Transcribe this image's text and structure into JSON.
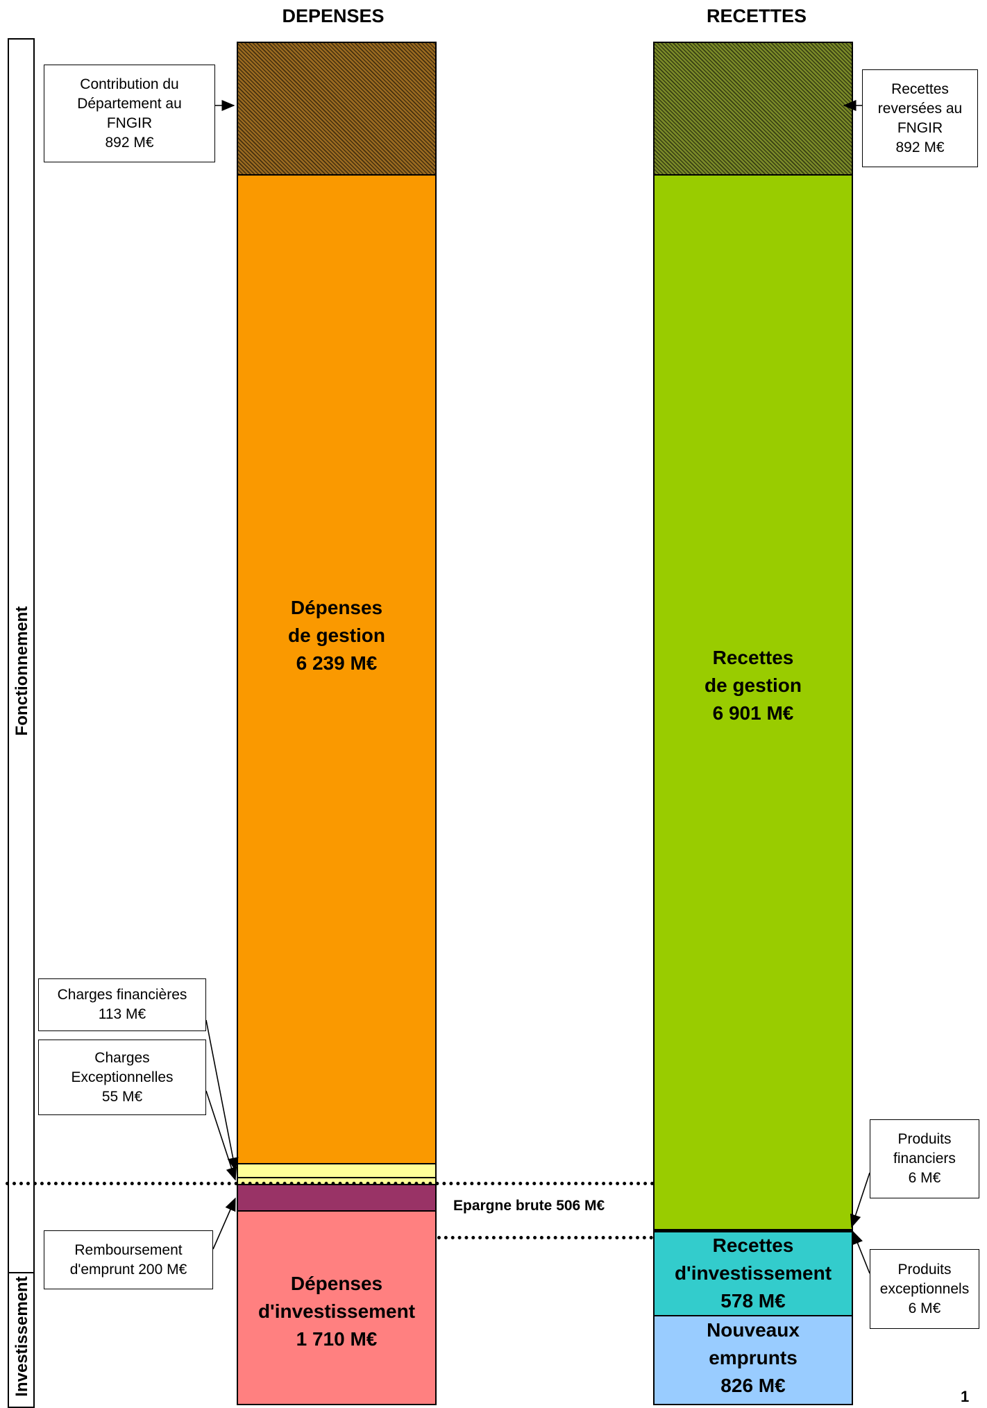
{
  "headings": {
    "depenses": "DEPENSES",
    "recettes": "RECETTES"
  },
  "sections": {
    "fonctionnement": "Fonctionnement",
    "investissement": "Investissement"
  },
  "depenses": {
    "fngir": {
      "color": "#9a6a20",
      "pattern": "hatched"
    },
    "gestion": {
      "label": "Dépenses\nde gestion\n6 239 M€",
      "color": "#fa9900"
    },
    "charges_financieres": {
      "color": "#ffff99"
    },
    "charges_exceptionnelles": {
      "color": "#ffff99"
    },
    "remboursement": {
      "color": "#993366"
    },
    "investissement": {
      "label": "Dépenses\nd'investissement\n1 710 M€",
      "color": "#ff8080"
    }
  },
  "recettes": {
    "fngir": {
      "color": "#7a8a28",
      "pattern": "hatched"
    },
    "gestion": {
      "label": "Recettes\nde gestion\n6 901 M€",
      "color": "#99cc00"
    },
    "investissement": {
      "label": "Recettes\nd'investissement\n578 M€",
      "color": "#33cccc"
    },
    "emprunts": {
      "label": "Nouveaux\nemprunts\n826 M€",
      "color": "#99ccff"
    }
  },
  "callouts": {
    "contribution_fngir": "Contribution du\nDépartement au\nFNGIR\n892 M€",
    "recettes_fngir": "Recettes\nreversées au\nFNGIR\n892 M€",
    "charges_financieres": "Charges financières\n113 M€",
    "charges_exceptionnelles": "Charges\nExceptionnelles\n55 M€",
    "remboursement_emprunt": "Remboursement\nd'emprunt 200 M€",
    "produits_financiers": "Produits\nfinanciers\n6 M€",
    "produits_exceptionnels": "Produits\nexceptionnels\n6 M€"
  },
  "epargne_brute": "Epargne brute 506 M€",
  "page_number": "1"
}
